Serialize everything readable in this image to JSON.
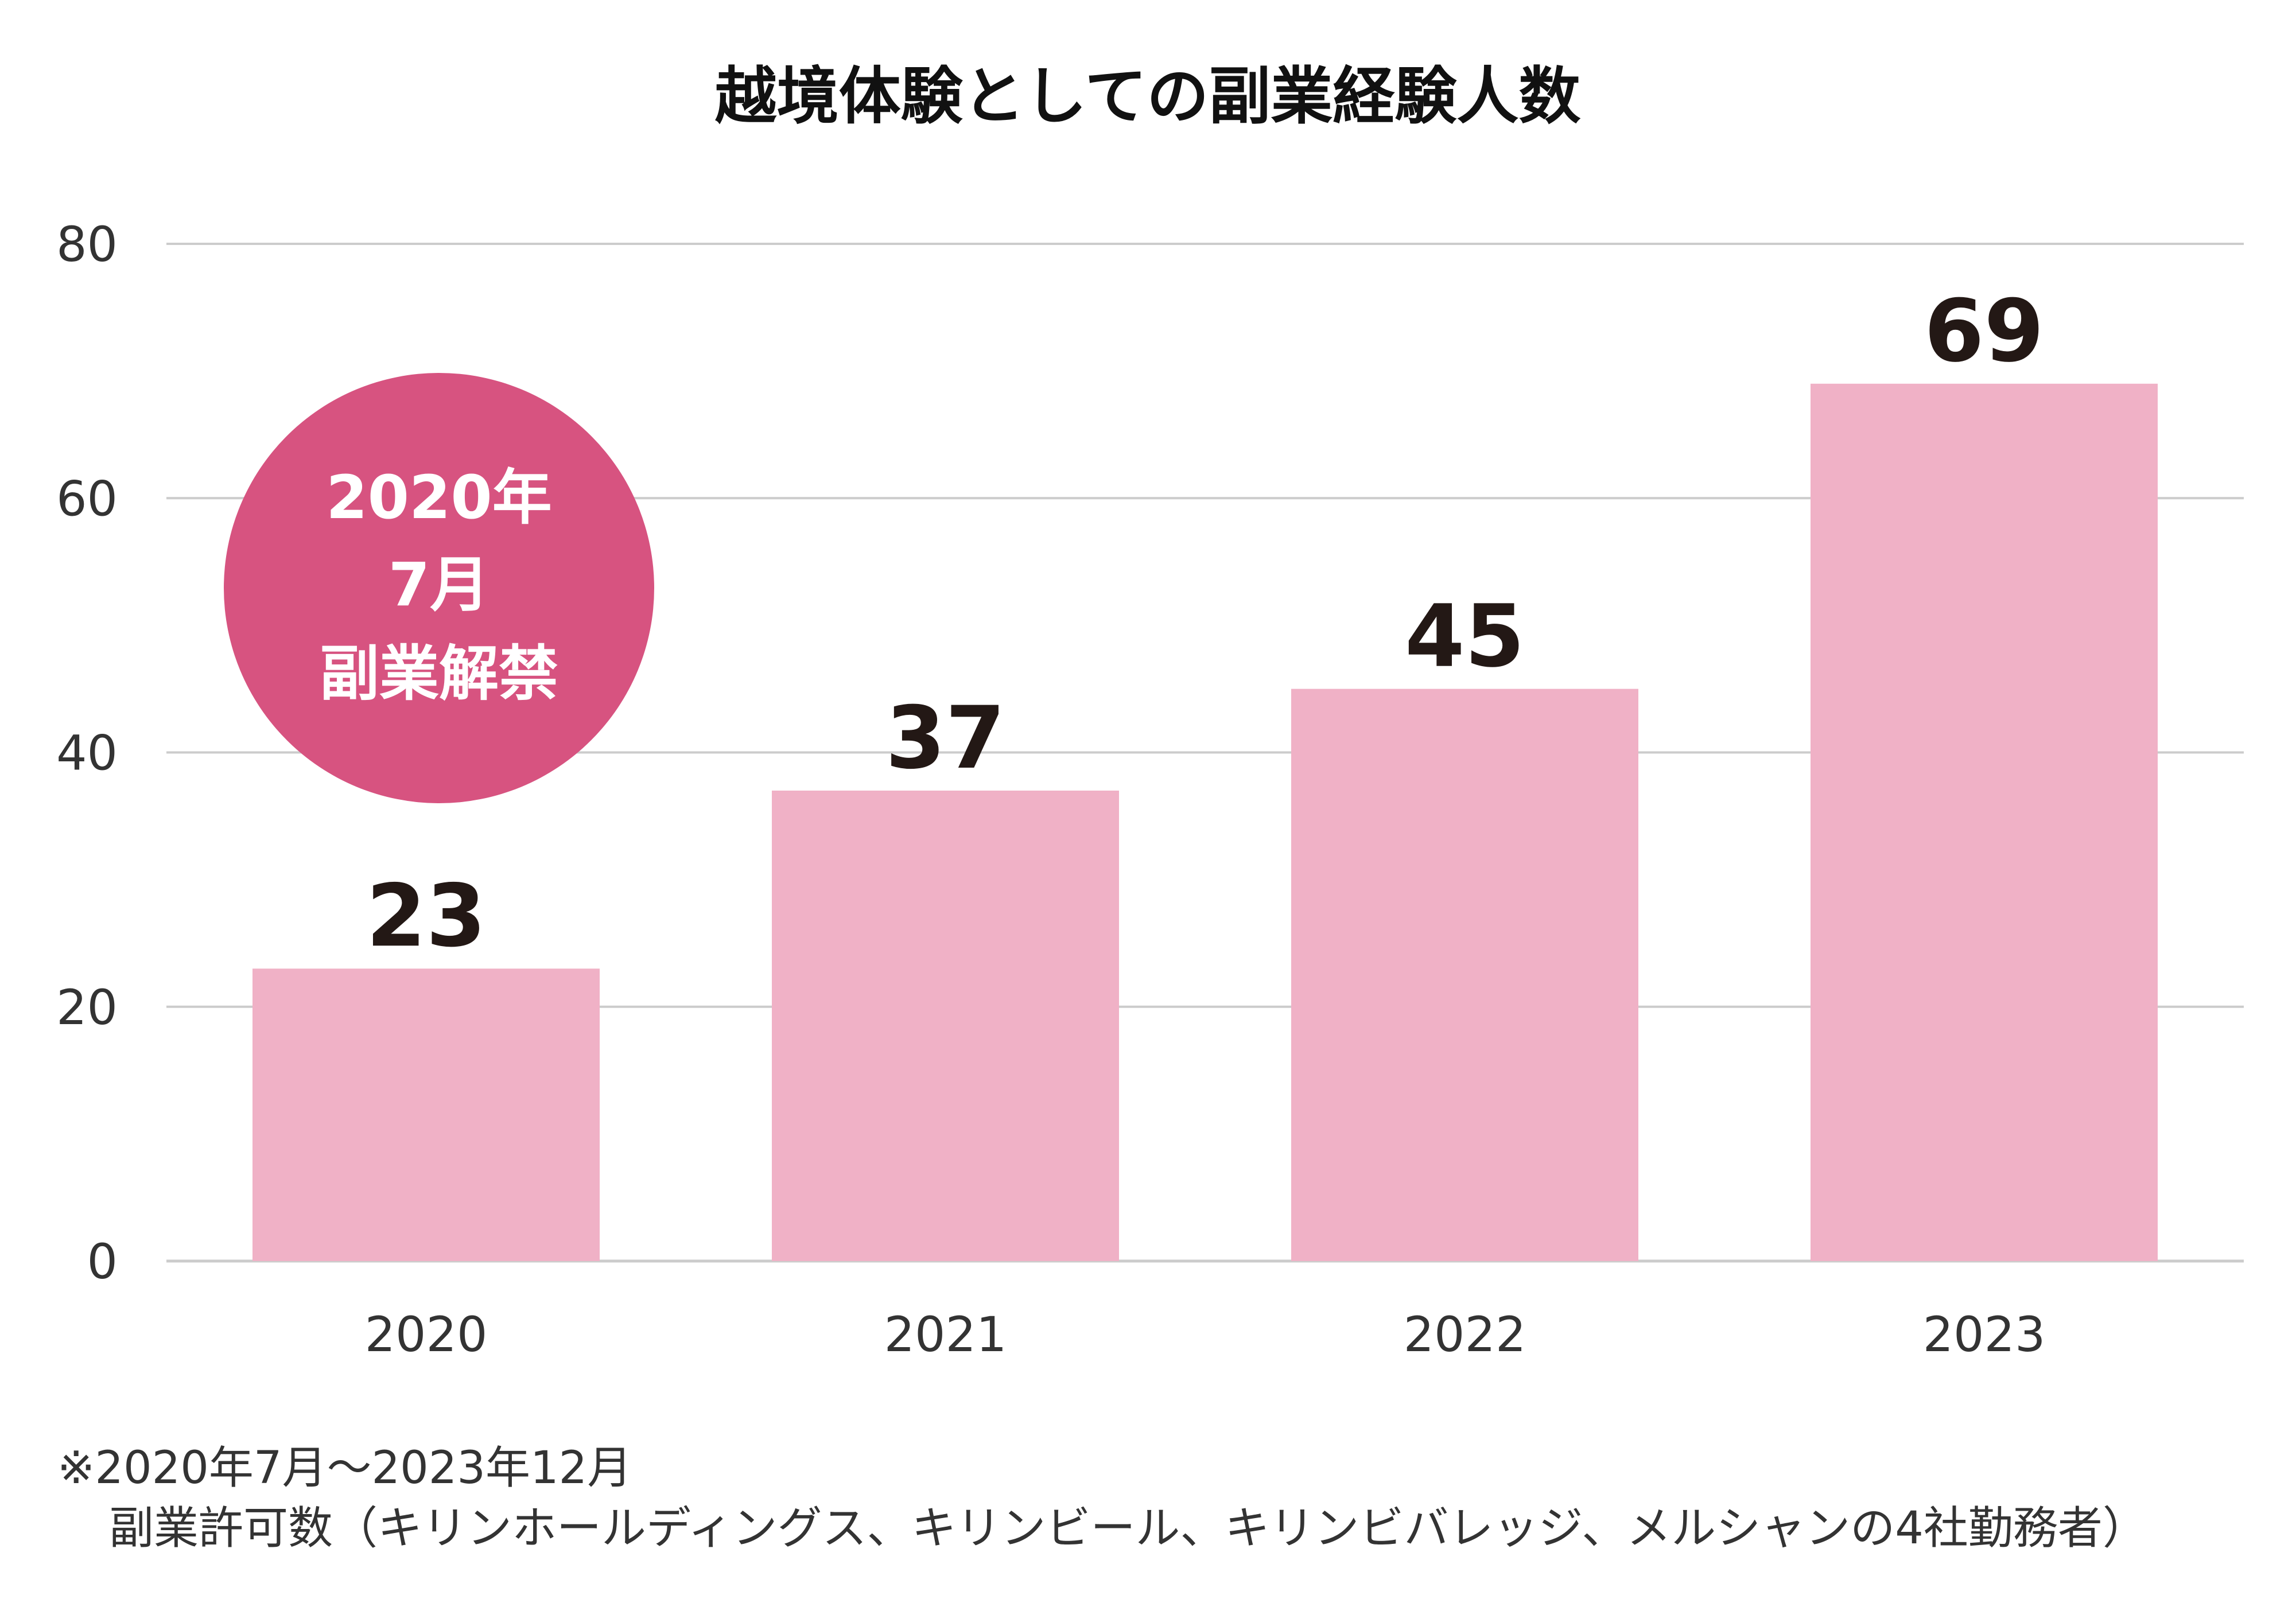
{
  "chart_data": {
    "type": "bar",
    "title": "越境体験としての副業経験人数",
    "categories": [
      "2020",
      "2021",
      "2022",
      "2023"
    ],
    "values": [
      23,
      37,
      45,
      69
    ],
    "ylim": [
      0,
      80
    ],
    "yticks": [
      0,
      20,
      40,
      60,
      80
    ],
    "grid": true,
    "xlabel": "",
    "ylabel": "",
    "bar_color": "#f0b1c6",
    "grid_color": "#cccccc",
    "annotation": {
      "lines": [
        "2020年",
        "7月",
        "副業解禁"
      ],
      "color": "#d75380",
      "text_color": "#ffffff"
    },
    "footnote": [
      "※2020年7月〜2023年12月",
      "副業許可数（キリンホールディングス、キリンビール、キリンビバレッジ、メルシャンの4社勤務者）"
    ]
  }
}
